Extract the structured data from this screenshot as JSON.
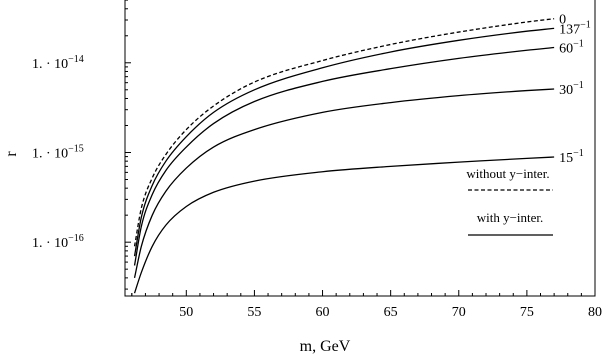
{
  "chart_data": {
    "type": "line",
    "scale": {
      "x": "linear",
      "y": "log"
    },
    "xlabel": "m, GeV",
    "ylabel": "r",
    "xlim": [
      45.5,
      80
    ],
    "ylim_exp": [
      -16.6,
      -13.3
    ],
    "x_ticks": [
      {
        "value": 50,
        "label": "50"
      },
      {
        "value": 55,
        "label": "55"
      },
      {
        "value": 60,
        "label": "60"
      },
      {
        "value": 65,
        "label": "65"
      },
      {
        "value": 70,
        "label": "70"
      },
      {
        "value": 75,
        "label": "75"
      },
      {
        "value": 80,
        "label": "80"
      }
    ],
    "y_ticks": [
      {
        "exp": -14,
        "mantissa": "1. · 10",
        "power": "−14"
      },
      {
        "exp": -15,
        "mantissa": "1. · 10",
        "power": "−15"
      },
      {
        "exp": -16,
        "mantissa": "1. · 10",
        "power": "−16"
      }
    ],
    "series": [
      {
        "label_base": "0",
        "label_sup": "",
        "style": "dashed",
        "points": [
          [
            46.2,
            9e-17
          ],
          [
            46.7,
            2.4e-16
          ],
          [
            47.5,
            5.2e-16
          ],
          [
            48.5,
            9.5e-16
          ],
          [
            50,
            1.8e-15
          ],
          [
            52,
            3.3e-15
          ],
          [
            55,
            6.1e-15
          ],
          [
            60,
            1.06e-14
          ],
          [
            65,
            1.6e-14
          ],
          [
            70,
            2.2e-14
          ],
          [
            75,
            2.85e-14
          ],
          [
            77,
            3.1e-14
          ]
        ]
      },
      {
        "label_base": "137",
        "label_sup": "−1",
        "style": "solid",
        "points": [
          [
            46.2,
            7e-17
          ],
          [
            46.7,
            1.9e-16
          ],
          [
            47.5,
            4.3e-16
          ],
          [
            48.5,
            8e-16
          ],
          [
            50,
            1.5e-15
          ],
          [
            52,
            2.8e-15
          ],
          [
            55,
            5e-15
          ],
          [
            60,
            8.8e-15
          ],
          [
            65,
            1.32e-14
          ],
          [
            70,
            1.78e-14
          ],
          [
            75,
            2.25e-14
          ],
          [
            77,
            2.42e-14
          ]
        ]
      },
      {
        "label_base": "60",
        "label_sup": "−1",
        "style": "solid",
        "points": [
          [
            46.2,
            5.5e-17
          ],
          [
            46.7,
            1.5e-16
          ],
          [
            47.5,
            3.4e-16
          ],
          [
            48.5,
            6.3e-16
          ],
          [
            50,
            1.15e-15
          ],
          [
            52,
            2.1e-15
          ],
          [
            55,
            3.7e-15
          ],
          [
            60,
            6.2e-15
          ],
          [
            65,
            8.6e-15
          ],
          [
            70,
            1.12e-14
          ],
          [
            75,
            1.38e-14
          ],
          [
            77,
            1.48e-14
          ]
        ]
      },
      {
        "label_base": "30",
        "label_sup": "−1",
        "style": "solid",
        "points": [
          [
            46.2,
            4e-17
          ],
          [
            46.7,
            9e-17
          ],
          [
            47.5,
            2e-16
          ],
          [
            48.5,
            3.7e-16
          ],
          [
            50,
            6.7e-16
          ],
          [
            52,
            1.15e-15
          ],
          [
            55,
            1.8e-15
          ],
          [
            60,
            2.8e-15
          ],
          [
            65,
            3.6e-15
          ],
          [
            70,
            4.3e-15
          ],
          [
            75,
            4.9e-15
          ],
          [
            77,
            5.1e-15
          ]
        ]
      },
      {
        "label_base": "15",
        "label_sup": "−1",
        "style": "solid",
        "points": [
          [
            46.2,
            2.7e-17
          ],
          [
            46.7,
            4.6e-17
          ],
          [
            47.5,
            9e-17
          ],
          [
            48.5,
            1.55e-16
          ],
          [
            50,
            2.5e-16
          ],
          [
            52,
            3.6e-16
          ],
          [
            55,
            4.8e-16
          ],
          [
            60,
            6.1e-16
          ],
          [
            65,
            7e-16
          ],
          [
            70,
            7.8e-16
          ],
          [
            75,
            8.6e-16
          ],
          [
            77,
            8.9e-16
          ]
        ]
      }
    ],
    "legend": [
      {
        "label": "without y−inter.",
        "style": "dashed"
      },
      {
        "label": "with y−inter.",
        "style": "solid"
      }
    ]
  }
}
